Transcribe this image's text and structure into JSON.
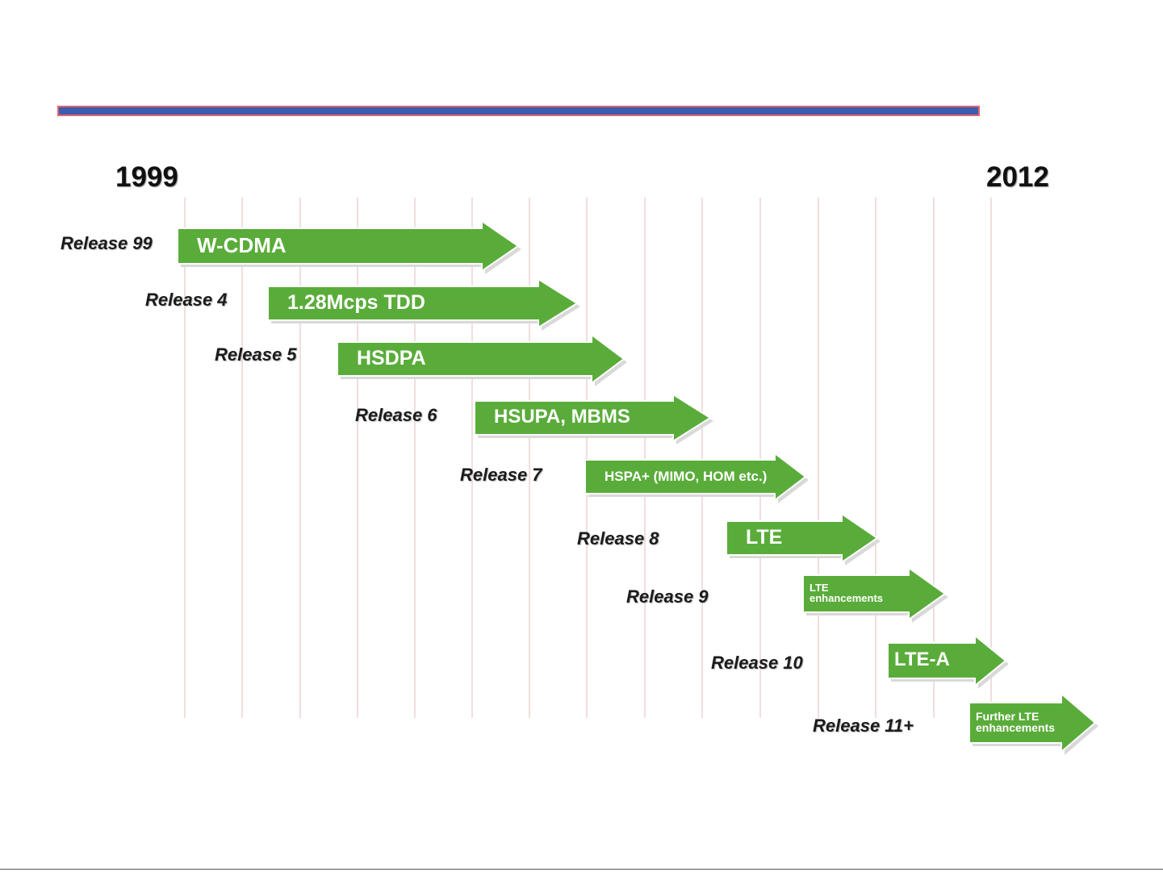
{
  "timeline": {
    "start_year": "1999",
    "end_year": "2012"
  },
  "colors": {
    "arrow_green": "#5aac3a",
    "title_bar_blue": "#3a5db1",
    "title_bar_border": "#e5656f",
    "grid_line": "#f1dede"
  },
  "releases": [
    {
      "label": "Release 99",
      "feature": "W-CDMA"
    },
    {
      "label": "Release 4",
      "feature": "1.28Mcps TDD"
    },
    {
      "label": "Release 5",
      "feature": "HSDPA"
    },
    {
      "label": "Release 6",
      "feature": "HSUPA, MBMS"
    },
    {
      "label": "Release 7",
      "feature": "HSPA+ (MIMO, HOM etc.)"
    },
    {
      "label": "Release 8",
      "feature": "LTE"
    },
    {
      "label": "Release 9",
      "feature": "LTE\nenhancements"
    },
    {
      "label": "Release 10",
      "feature": "LTE-A"
    },
    {
      "label": "Release 11+",
      "feature": "Further LTE\nenhancements"
    }
  ]
}
